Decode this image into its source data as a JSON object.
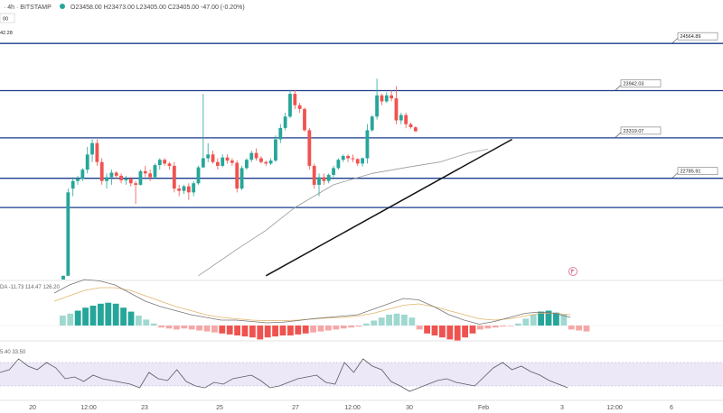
{
  "header": {
    "symbol_interval": "· 4h · BITSTAMP",
    "ohlc": "O23458.00  H23473.00  L23405.00  C23405.00  -47.00 (-0.20%)",
    "price_tag": "00",
    "price_left": "42.28"
  },
  "macd_label": "DA  -11.73  114.47  126.20",
  "rsi_label": "5.40  33.50",
  "event_icon": "flag-icon",
  "colors": {
    "up": "#26a69a",
    "down": "#ef5350",
    "level": "#1a3c8c",
    "trend": "#111111",
    "ma": "#999999",
    "background": "#ffffff"
  },
  "chart_data": {
    "type": "candlestick",
    "x_ticks": [
      "20",
      "12:00",
      "23",
      "25",
      "27",
      "12:00",
      "30",
      "Feb",
      "3",
      "12:00",
      "6"
    ],
    "levels": [
      {
        "value": 24564.89,
        "label": "24564.89"
      },
      {
        "value": 23942.03,
        "label": "23942.03"
      },
      {
        "value": 23319.07,
        "label": "23319.07"
      },
      {
        "value": 22785.91,
        "label": "22785.91"
      },
      {
        "value": 22400,
        "label": ""
      }
    ],
    "ylim": [
      21450,
      24900
    ],
    "trendline": {
      "start": {
        "candle": 42,
        "price": 21500
      },
      "end": {
        "candle": 93,
        "price": 23300
      }
    },
    "moving_average": [
      {
        "candle": 28,
        "price": 21500
      },
      {
        "candle": 36,
        "price": 21850
      },
      {
        "candle": 42,
        "price": 22100
      },
      {
        "candle": 48,
        "price": 22400
      },
      {
        "candle": 56,
        "price": 22700
      },
      {
        "candle": 64,
        "price": 22850
      },
      {
        "candle": 72,
        "price": 22940
      },
      {
        "candle": 78,
        "price": 23000
      },
      {
        "candle": 84,
        "price": 23120
      },
      {
        "candle": 88,
        "price": 23170
      }
    ],
    "candles": [
      [
        21450,
        21500,
        21450,
        21500
      ],
      [
        21500,
        22650,
        21500,
        22600
      ],
      [
        22650,
        22800,
        22550,
        22750
      ],
      [
        22750,
        22820,
        22700,
        22780
      ],
      [
        22780,
        22920,
        22750,
        22900
      ],
      [
        22900,
        23200,
        22850,
        23100
      ],
      [
        23100,
        23300,
        23000,
        23250
      ],
      [
        23250,
        23300,
        22950,
        23000
      ],
      [
        23000,
        23050,
        22700,
        22750
      ],
      [
        22750,
        22850,
        22650,
        22800
      ],
      [
        22800,
        22900,
        22700,
        22860
      ],
      [
        22860,
        22880,
        22780,
        22820
      ],
      [
        22820,
        22850,
        22720,
        22760
      ],
      [
        22760,
        22820,
        22700,
        22780
      ],
      [
        22780,
        22800,
        22680,
        22720
      ],
      [
        22720,
        22750,
        22450,
        22700
      ],
      [
        22700,
        22900,
        22690,
        22880
      ],
      [
        22880,
        22950,
        22800,
        22850
      ],
      [
        22850,
        22900,
        22750,
        22800
      ],
      [
        22800,
        22980,
        22780,
        22960
      ],
      [
        22960,
        23050,
        22900,
        23030
      ],
      [
        23030,
        23050,
        22950,
        22980
      ],
      [
        22980,
        23000,
        22900,
        22950
      ],
      [
        22950,
        23000,
        22600,
        22650
      ],
      [
        22650,
        22700,
        22550,
        22620
      ],
      [
        22620,
        22700,
        22580,
        22680
      ],
      [
        22680,
        22720,
        22500,
        22600
      ],
      [
        22600,
        22750,
        22550,
        22720
      ],
      [
        22720,
        22950,
        22700,
        22930
      ],
      [
        22930,
        23900,
        22920,
        23050
      ],
      [
        23050,
        23250,
        23000,
        23100
      ],
      [
        23100,
        23150,
        22980,
        23000
      ],
      [
        23000,
        23050,
        22900,
        22950
      ],
      [
        22950,
        23100,
        22930,
        23060
      ],
      [
        23060,
        23100,
        22980,
        23020
      ],
      [
        23020,
        23050,
        22950,
        22990
      ],
      [
        22990,
        23020,
        22600,
        22650
      ],
      [
        22650,
        22950,
        22630,
        22920
      ],
      [
        22920,
        23050,
        22900,
        23030
      ],
      [
        23030,
        23150,
        23000,
        23120
      ],
      [
        23120,
        23180,
        23020,
        23050
      ],
      [
        23050,
        23080,
        22980,
        23000
      ],
      [
        23000,
        23020,
        22950,
        22980
      ],
      [
        22980,
        23050,
        22960,
        23020
      ],
      [
        23020,
        23350,
        23000,
        23300
      ],
      [
        23300,
        23500,
        23250,
        23450
      ],
      [
        23450,
        23650,
        23420,
        23600
      ],
      [
        23600,
        23950,
        23580,
        23900
      ],
      [
        23900,
        23950,
        23700,
        23750
      ],
      [
        23750,
        23780,
        23650,
        23700
      ],
      [
        23700,
        23720,
        23400,
        23420
      ],
      [
        23420,
        23450,
        22900,
        22950
      ],
      [
        22950,
        22980,
        22650,
        22700
      ],
      [
        22700,
        22850,
        22550,
        22800
      ],
      [
        22800,
        22850,
        22700,
        22750
      ],
      [
        22750,
        22850,
        22720,
        22830
      ],
      [
        22830,
        22950,
        22800,
        22920
      ],
      [
        22920,
        23050,
        22900,
        23030
      ],
      [
        23030,
        23100,
        23000,
        23080
      ],
      [
        23080,
        23100,
        23000,
        23050
      ],
      [
        23050,
        23100,
        23000,
        23040
      ],
      [
        23040,
        23050,
        22950,
        22980
      ],
      [
        22980,
        23060,
        22940,
        23050
      ],
      [
        23050,
        23500,
        22980,
        23420
      ],
      [
        23420,
        23620,
        23400,
        23600
      ],
      [
        23600,
        24100,
        23560,
        23880
      ],
      [
        23880,
        23900,
        23750,
        23800
      ],
      [
        23800,
        23920,
        23780,
        23880
      ],
      [
        23880,
        23950,
        23800,
        23840
      ],
      [
        23840,
        24000,
        23500,
        23550
      ],
      [
        23550,
        23650,
        23500,
        23620
      ],
      [
        23620,
        23650,
        23450,
        23500
      ],
      [
        23500,
        23520,
        23440,
        23460
      ],
      [
        23458,
        23473,
        23405,
        23405
      ]
    ],
    "macd": {
      "histogram": [
        50,
        60,
        75,
        90,
        100,
        110,
        115,
        110,
        90,
        70,
        50,
        30,
        10,
        -10,
        -15,
        -20,
        -15,
        -20,
        -25,
        -30,
        -35,
        -40,
        -45,
        -50,
        -55,
        -60,
        -70,
        -60,
        -55,
        -50,
        -50,
        -45,
        -40,
        -35,
        -30,
        -25,
        -20,
        -15,
        -10,
        -5,
        10,
        25,
        40,
        55,
        60,
        55,
        40,
        -20,
        -40,
        -50,
        -60,
        -70,
        -80,
        -60,
        -40,
        -20,
        -15,
        -10,
        -5,
        -3,
        10,
        35,
        55,
        70,
        75,
        65,
        55,
        -20,
        -25,
        -30
      ],
      "macd_line": [
        120,
        150,
        170,
        165,
        150,
        120,
        90,
        70,
        55,
        40,
        30,
        20,
        20,
        15,
        10,
        12,
        18,
        25,
        30,
        35,
        40,
        60,
        80,
        100,
        95,
        70,
        40,
        20,
        5,
        15,
        30,
        45,
        50,
        45,
        30
      ],
      "signal_line": [
        90,
        110,
        130,
        140,
        140,
        130,
        110,
        90,
        70,
        55,
        40,
        30,
        25,
        20,
        18,
        18,
        20,
        24,
        28,
        30,
        35,
        45,
        60,
        75,
        80,
        70,
        55,
        40,
        25,
        20,
        25,
        35,
        45,
        45,
        40
      ]
    },
    "rsi": [
      55,
      58,
      70,
      62,
      58,
      66,
      60,
      48,
      50,
      45,
      52,
      48,
      46,
      44,
      42,
      38,
      55,
      48,
      46,
      58,
      45,
      40,
      38,
      44,
      42,
      48,
      50,
      52,
      46,
      38,
      40,
      44,
      48,
      50,
      52,
      44,
      42,
      66,
      55,
      70,
      62,
      58,
      45,
      40,
      34,
      38,
      42,
      46,
      48,
      44,
      42,
      40,
      50,
      60,
      66,
      58,
      62,
      56,
      52,
      46,
      42,
      38
    ]
  }
}
